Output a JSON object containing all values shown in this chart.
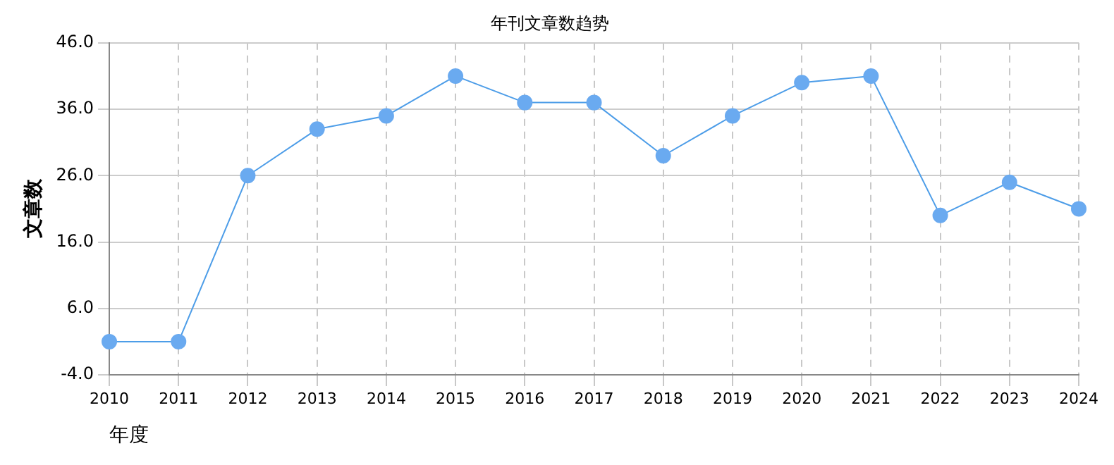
{
  "chart_data": {
    "type": "line",
    "title": "年刊文章数趋势",
    "xlabel": "年度",
    "ylabel": "文章数",
    "categories": [
      "2010",
      "2011",
      "2012",
      "2013",
      "2014",
      "2015",
      "2016",
      "2017",
      "2018",
      "2019",
      "2020",
      "2021",
      "2022",
      "2023",
      "2024"
    ],
    "series": [
      {
        "color": "#4d9de8",
        "values": [
          1,
          1,
          26,
          33,
          35,
          41,
          37,
          37,
          29,
          35,
          40,
          41,
          20,
          25,
          21
        ]
      }
    ],
    "ylim": [
      -4,
      46
    ],
    "yticks": [
      {
        "value": -4,
        "label": "-4.0"
      },
      {
        "value": 6,
        "label": "6.0"
      },
      {
        "value": 16,
        "label": "16.0"
      },
      {
        "value": 26,
        "label": "26.0"
      },
      {
        "value": 36,
        "label": "36.0"
      },
      {
        "value": 46,
        "label": "46.0"
      }
    ],
    "grid": true,
    "marker": "circle",
    "line_style": "solid",
    "legend": false
  }
}
